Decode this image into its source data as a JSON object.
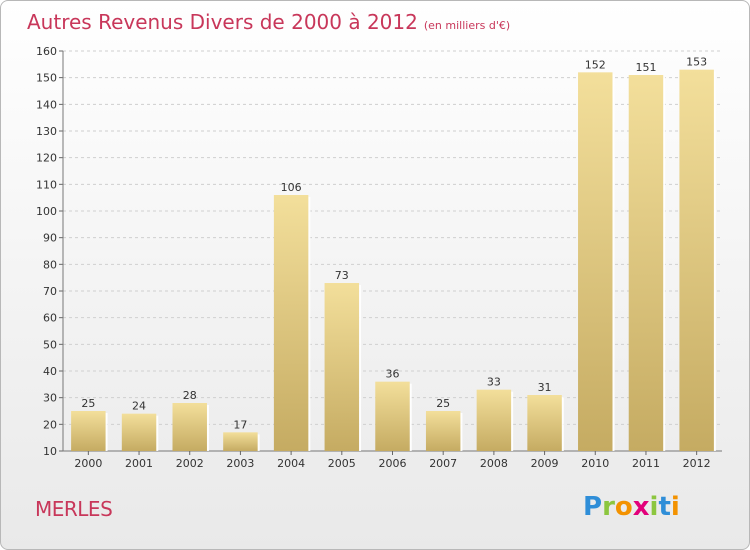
{
  "header": {
    "title": "Autres Revenus Divers de 2000 à 2012",
    "unit": "(en milliers d'€)"
  },
  "footer": {
    "commune": "MERLES"
  },
  "logo": {
    "letters": [
      "P",
      "r",
      "o",
      "x",
      "i",
      "t",
      "i"
    ],
    "colors": [
      "#2f8ed8",
      "#8cc63f",
      "#f39200",
      "#e2007a",
      "#8cc63f",
      "#2f8ed8",
      "#f39200"
    ]
  },
  "colors": {
    "bar_top": "#f3df9b",
    "bar_bottom": "#c5ab62",
    "grid": "#cfcfcf",
    "accent": "#c8375a"
  },
  "chart_data": {
    "type": "bar",
    "title": "Autres Revenus Divers de 2000 à 2012",
    "xlabel": "",
    "ylabel": "",
    "categories": [
      "2000",
      "2001",
      "2002",
      "2003",
      "2004",
      "2005",
      "2006",
      "2007",
      "2008",
      "2009",
      "2010",
      "2011",
      "2012"
    ],
    "values": [
      25,
      24,
      28,
      17,
      106,
      73,
      36,
      25,
      33,
      31,
      152,
      151,
      153
    ],
    "ylim": [
      10,
      160
    ],
    "yticks": [
      10,
      20,
      30,
      40,
      50,
      60,
      70,
      80,
      90,
      100,
      110,
      120,
      130,
      140,
      150,
      160
    ],
    "grid": true,
    "data_labels": true
  }
}
